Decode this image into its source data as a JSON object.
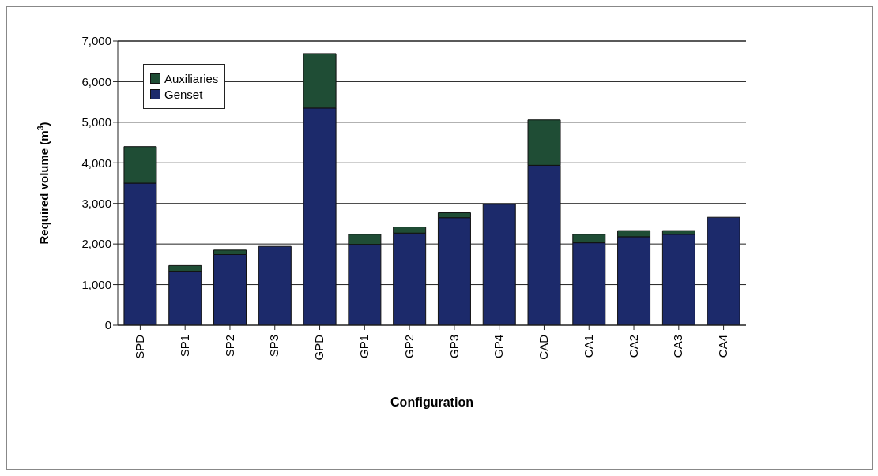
{
  "chart_data": {
    "type": "bar",
    "stacked": true,
    "xlabel": "Configuration",
    "ylabel": "Required volume (m$^{3}$)",
    "categories": [
      "SPD",
      "SP1",
      "SP2",
      "SP3",
      "GPD",
      "GP1",
      "GP2",
      "GP3",
      "GP4",
      "CAD",
      "CA1",
      "CA2",
      "CA3",
      "CA4"
    ],
    "series": [
      {
        "name": "Genset",
        "color": "#1c2a6b",
        "values": [
          3500,
          1330,
          1740,
          1940,
          5350,
          1990,
          2270,
          2650,
          2980,
          3940,
          2030,
          2180,
          2240,
          2660
        ]
      },
      {
        "name": "Auxiliaries",
        "color": "#1f4d35",
        "values": [
          900,
          140,
          110,
          0,
          1340,
          250,
          150,
          120,
          0,
          1120,
          210,
          150,
          90,
          0
        ]
      }
    ],
    "ylim": [
      0,
      7000
    ],
    "yticks": [
      {
        "value": 0,
        "label": "0"
      },
      {
        "value": 1000,
        "label": "1,000"
      },
      {
        "value": 2000,
        "label": "2,000"
      },
      {
        "value": 3000,
        "label": "3,000"
      },
      {
        "value": 4000,
        "label": "4,000"
      },
      {
        "value": 5000,
        "label": "5,000"
      },
      {
        "value": 6000,
        "label": "6,000"
      },
      {
        "value": 7000,
        "label": "7,000"
      }
    ],
    "grid": "y",
    "legend": "top left"
  }
}
